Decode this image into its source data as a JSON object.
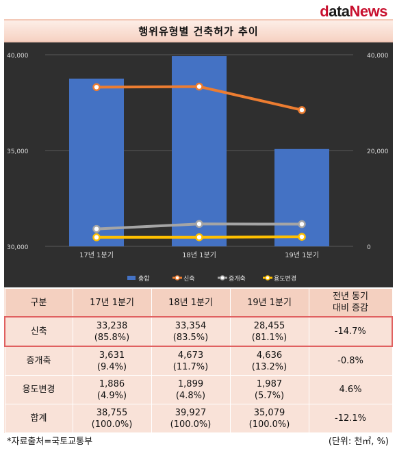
{
  "logo": {
    "d": "d",
    "ata": "ata",
    "news": "News"
  },
  "title": "행위유형별 건축허가 추이",
  "chart_data": {
    "type": "bar",
    "categories": [
      "17년 1분기",
      "18년 1분기",
      "19년 1분기"
    ],
    "left_axis": {
      "ticks": [
        "30,000",
        "35,000",
        "40,000"
      ],
      "range": [
        30000,
        40000
      ]
    },
    "right_axis": {
      "ticks": [
        "0",
        "20,000",
        "40,000"
      ],
      "range": [
        0,
        40000
      ]
    },
    "series": [
      {
        "name": "총합",
        "type": "bar",
        "axis": "left",
        "color": "#4472c4",
        "values": [
          38755,
          39927,
          35079
        ]
      },
      {
        "name": "신축",
        "type": "line",
        "axis": "right",
        "color": "#ed7d31",
        "values": [
          33238,
          33354,
          28455
        ]
      },
      {
        "name": "증개축",
        "type": "line",
        "axis": "right",
        "color": "#a5a5a5",
        "values": [
          3631,
          4673,
          4636
        ]
      },
      {
        "name": "용도변경",
        "type": "line",
        "axis": "right",
        "color": "#ffc000",
        "values": [
          1886,
          1899,
          1987
        ]
      }
    ],
    "legend_position": "bottom"
  },
  "table": {
    "headers": [
      "구분",
      "17년 1분기",
      "18년 1분기",
      "19년 1분기",
      "전년 동기",
      "대비 증감"
    ],
    "rows": [
      {
        "label": "신축",
        "cells": [
          [
            "33,238",
            "(85.8%)"
          ],
          [
            "33,354",
            "(83.5%)"
          ],
          [
            "28,455",
            "(81.1%)"
          ]
        ],
        "change": "-14.7%"
      },
      {
        "label": "증개축",
        "cells": [
          [
            "3,631",
            "(9.4%)"
          ],
          [
            "4,673",
            "(11.7%)"
          ],
          [
            "4,636",
            "(13.2%)"
          ]
        ],
        "change": "-0.8%"
      },
      {
        "label": "용도변경",
        "cells": [
          [
            "1,886",
            "(4.9%)"
          ],
          [
            "1,899",
            "(4.8%)"
          ],
          [
            "1,987",
            "(5.7%)"
          ]
        ],
        "change": "4.6%"
      },
      {
        "label": "합계",
        "cells": [
          [
            "38,755",
            "(100.0%)"
          ],
          [
            "39,927",
            "(100.0%)"
          ],
          [
            "35,079",
            "(100.0%)"
          ]
        ],
        "change": "-12.1%"
      }
    ]
  },
  "footer": {
    "source": "*자료출처=국토교통부",
    "unit": "(단위: 천㎡, %)"
  }
}
